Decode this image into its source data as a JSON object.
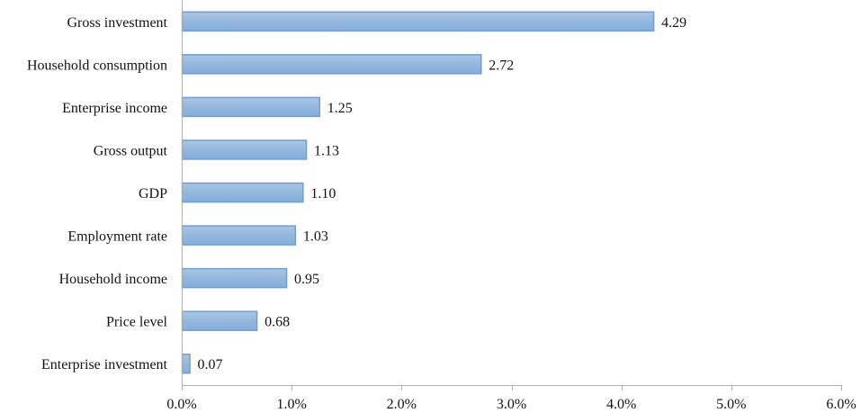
{
  "chart_data": {
    "type": "bar",
    "orientation": "horizontal",
    "categories": [
      "Gross investment",
      "Household consumption",
      "Enterprise income",
      "Gross output",
      "GDP",
      "Employment rate",
      "Household income",
      "Price level",
      "Enterprise investment"
    ],
    "values": [
      4.29,
      2.72,
      1.25,
      1.13,
      1.1,
      1.03,
      0.95,
      0.68,
      0.07
    ],
    "value_labels": [
      "4.29",
      "2.72",
      "1.25",
      "1.13",
      "1.10",
      "1.03",
      "0.95",
      "0.68",
      "0.07"
    ],
    "xlim": [
      0,
      6
    ],
    "xticks": [
      0,
      1,
      2,
      3,
      4,
      5,
      6
    ],
    "xtick_labels": [
      "0.0%",
      "1.0%",
      "2.0%",
      "3.0%",
      "4.0%",
      "5.0%",
      "6.0%"
    ],
    "title": "",
    "xlabel": "",
    "ylabel": "",
    "grid": false,
    "legend": "none",
    "colors": {
      "bar_fill": "#94b8de",
      "bar_stroke": "#6f9fd2",
      "axis": "#b0b0b0",
      "text": "#111111"
    }
  }
}
